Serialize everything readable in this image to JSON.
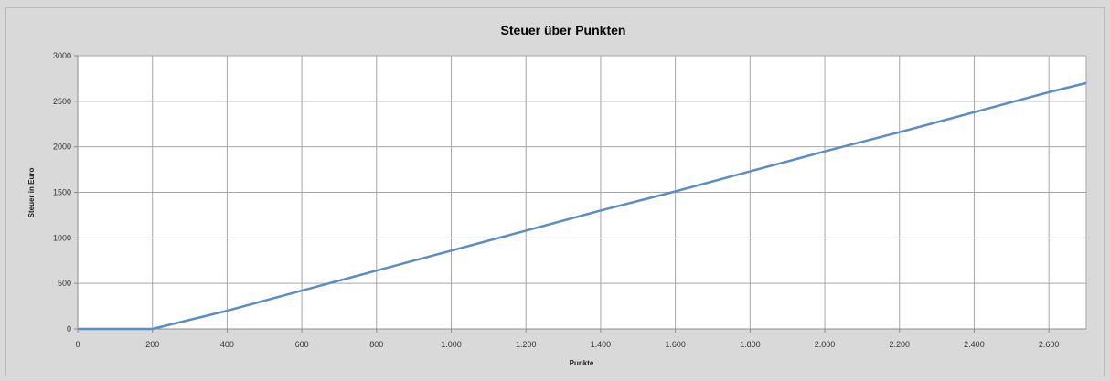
{
  "chart_data": {
    "type": "line",
    "title": "Steuer über Punkten",
    "xlabel": "Punkte",
    "ylabel": "Steuer in Euro",
    "xlim": [
      0,
      2700
    ],
    "ylim": [
      0,
      3000
    ],
    "x_ticks": [
      0,
      200,
      400,
      600,
      800,
      1000,
      1200,
      1400,
      1600,
      1800,
      2000,
      2200,
      2400,
      2600
    ],
    "x_tick_labels": [
      "0",
      "200",
      "400",
      "600",
      "800",
      "1.000",
      "1.200",
      "1.400",
      "1.600",
      "1.800",
      "2.000",
      "2.200",
      "2.400",
      "2.600"
    ],
    "y_ticks": [
      0,
      500,
      1000,
      1500,
      2000,
      2500,
      3000
    ],
    "y_tick_labels": [
      "0",
      "500",
      "1000",
      "1500",
      "2000",
      "2500",
      "3000"
    ],
    "grid": true,
    "series": [
      {
        "x": [
          0,
          100,
          200,
          400,
          600,
          800,
          1000,
          1200,
          1400,
          1600,
          1800,
          2000,
          2200,
          2400,
          2600,
          2700
        ],
        "y": [
          0,
          0,
          0,
          200,
          420,
          640,
          860,
          1080,
          1300,
          1510,
          1730,
          1950,
          2160,
          2380,
          2600,
          2700
        ]
      }
    ],
    "colors": {
      "line": "#5b8dc4",
      "grid": "#a6a6a6",
      "plot_bg": "#ffffff",
      "chart_bg": "#d9d9d9"
    }
  }
}
